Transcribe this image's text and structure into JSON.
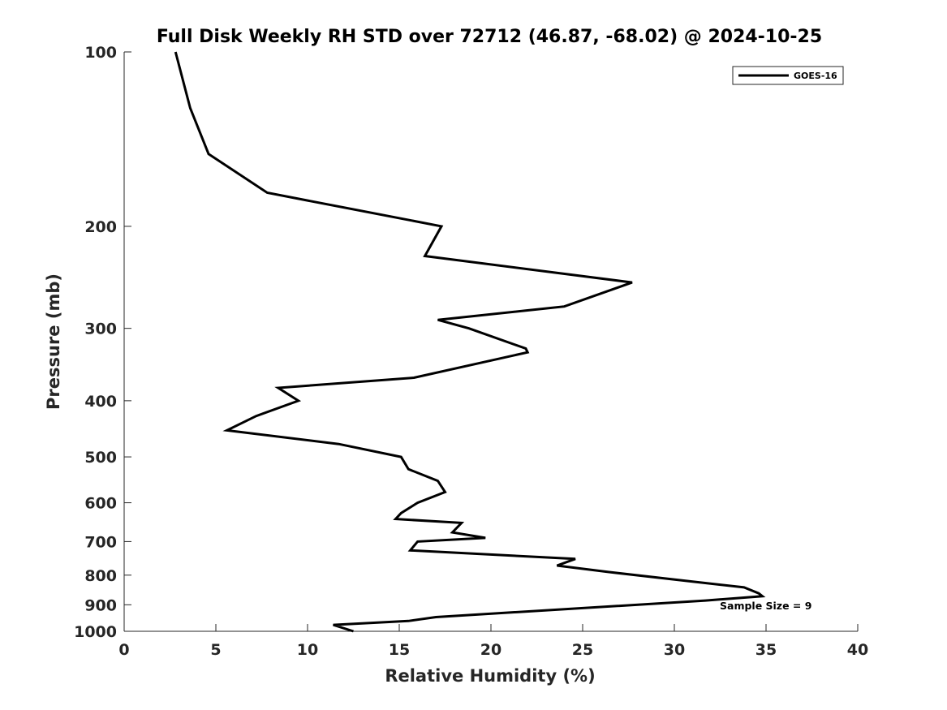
{
  "chart_data": {
    "type": "line",
    "title": "Full Disk Weekly RH STD over 72712 (46.87, -68.02) @ 2024-10-25",
    "xlabel": "Relative Humidity (%)",
    "ylabel": "Pressure (mb)",
    "xlim": [
      0,
      40
    ],
    "ylim": [
      100,
      1000
    ],
    "yscale": "log",
    "y_reversed": true,
    "xticks": [
      0,
      5,
      10,
      15,
      20,
      25,
      30,
      35,
      40
    ],
    "yticks": [
      100,
      200,
      300,
      400,
      500,
      600,
      700,
      800,
      900,
      1000
    ],
    "grid": false,
    "legend_position": "top-right",
    "annotation": "Sample Size = 9",
    "series": [
      {
        "name": "GOES-16",
        "color": "#000000",
        "points": [
          [
            2.8,
            100
          ],
          [
            3.6,
            125
          ],
          [
            4.6,
            150
          ],
          [
            7.8,
            175
          ],
          [
            17.3,
            200
          ],
          [
            16.4,
            225
          ],
          [
            27.7,
            250
          ],
          [
            24.0,
            275
          ],
          [
            17.1,
            290
          ],
          [
            18.8,
            300
          ],
          [
            21.9,
            325
          ],
          [
            22.0,
            330
          ],
          [
            15.8,
            365
          ],
          [
            8.4,
            380
          ],
          [
            9.5,
            400
          ],
          [
            7.2,
            425
          ],
          [
            5.6,
            450
          ],
          [
            11.7,
            475
          ],
          [
            15.1,
            500
          ],
          [
            15.5,
            525
          ],
          [
            17.1,
            550
          ],
          [
            17.5,
            575
          ],
          [
            16.0,
            600
          ],
          [
            15.1,
            625
          ],
          [
            14.8,
            640
          ],
          [
            18.4,
            650
          ],
          [
            17.9,
            675
          ],
          [
            19.7,
            690
          ],
          [
            16.0,
            700
          ],
          [
            15.6,
            725
          ],
          [
            24.6,
            750
          ],
          [
            23.6,
            770
          ],
          [
            26.4,
            790
          ],
          [
            30.9,
            820
          ],
          [
            33.8,
            840
          ],
          [
            34.6,
            860
          ],
          [
            34.8,
            870
          ],
          [
            31.7,
            885
          ],
          [
            17.0,
            945
          ],
          [
            15.5,
            960
          ],
          [
            11.4,
            975
          ],
          [
            12.5,
            1000
          ]
        ]
      }
    ]
  }
}
